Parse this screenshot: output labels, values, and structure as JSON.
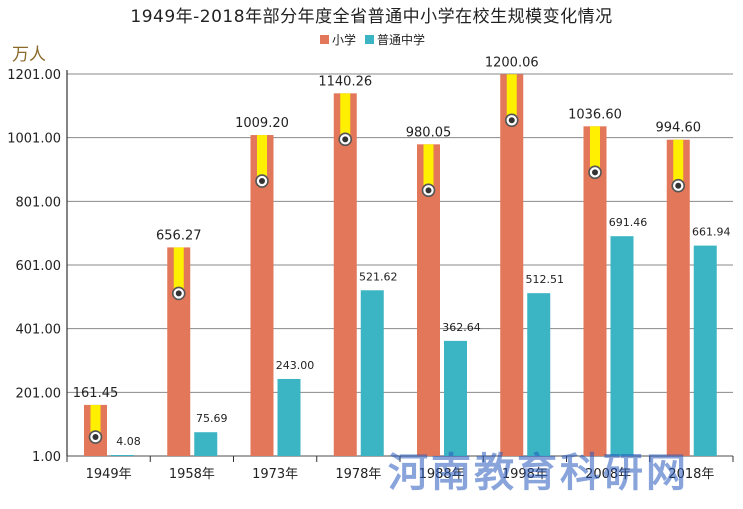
{
  "title": "1949年-2018年部分年度全省普通中小学在校生规模变化情况",
  "watermark": "河南教育科研网",
  "colors": {
    "primary_school": "#e37759",
    "secondary_school": "#3bb4c4",
    "stripe": "#ffef00",
    "grid": "#8a8a8a",
    "axis": "#333333"
  },
  "chart_data": {
    "type": "bar",
    "title": "1949年-2018年部分年度全省普通中小学在校生规模变化情况",
    "ylabel": "万人",
    "xlabel": "",
    "categories": [
      "1949年",
      "1958年",
      "1973年",
      "1978年",
      "1988年",
      "1998年",
      "2008年",
      "2018年"
    ],
    "series": [
      {
        "name": "小学",
        "values": [
          161.45,
          656.27,
          1009.2,
          1140.26,
          980.05,
          1200.06,
          1036.6,
          994.6
        ],
        "labels": [
          "161.45",
          "656.27",
          "1009.20",
          "1140.26",
          "980.05",
          "1200.06",
          "1036.60",
          "994.60"
        ]
      },
      {
        "name": "普通中学",
        "values": [
          4.08,
          75.69,
          243.0,
          521.62,
          362.64,
          512.51,
          691.46,
          661.94
        ],
        "labels": [
          "4.08",
          "75.69",
          "243.00",
          "521.62",
          "362.64",
          "512.51",
          "691.46",
          "661.94"
        ]
      }
    ],
    "yticks": [
      1.0,
      201.0,
      401.0,
      601.0,
      801.0,
      1001.0,
      1201.0
    ],
    "ytick_labels": [
      "1.00",
      "201.00",
      "401.00",
      "601.00",
      "801.00",
      "1001.00",
      "1201.00"
    ],
    "ylim": [
      1,
      1201
    ],
    "grid": true,
    "legend_position": "top-center"
  }
}
